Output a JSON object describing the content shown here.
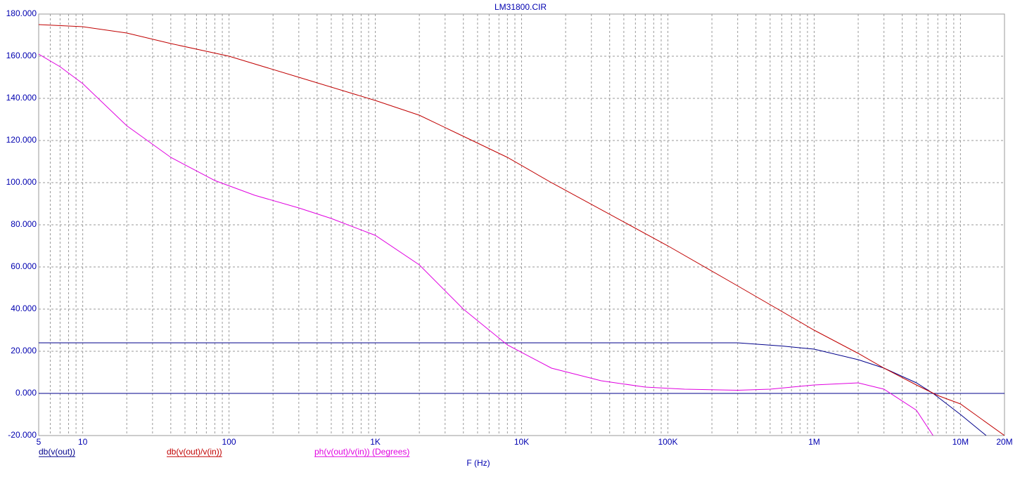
{
  "chart_data": {
    "type": "line",
    "title": "LM31800.CIR",
    "x_label": "F (Hz)",
    "log_x": true,
    "grid": true,
    "xlim": [
      5,
      20000000
    ],
    "xticks": [
      5,
      10,
      100,
      {
        "value": 1000,
        "label": "1K"
      },
      {
        "value": 10000,
        "label": "10K"
      },
      {
        "value": 100000,
        "label": "100K"
      },
      {
        "value": 1000000,
        "label": "1M"
      },
      {
        "value": 10000000,
        "label": "10M"
      },
      {
        "value": 20000000,
        "label": "20M"
      }
    ],
    "ylim": [
      -20,
      180
    ],
    "yticks": [
      {
        "value": -20,
        "label": "-20.000"
      },
      {
        "value": 0,
        "label": "0.000"
      },
      {
        "value": 20,
        "label": "20.000"
      },
      {
        "value": 40,
        "label": "40.000"
      },
      {
        "value": 60,
        "label": "60.000"
      },
      {
        "value": 80,
        "label": "80.000"
      },
      {
        "value": 100,
        "label": "100.000"
      },
      {
        "value": 120,
        "label": "120.000"
      },
      {
        "value": 140,
        "label": "140.000"
      },
      {
        "value": 160,
        "label": "160.000"
      },
      {
        "value": 180,
        "label": "180.000"
      }
    ],
    "series": [
      {
        "name": "db(v(out))",
        "color": "#00008b",
        "x": [
          5,
          100,
          10000,
          300000,
          600000,
          1000000,
          2000000,
          3000000,
          5000000,
          6500000,
          10000000,
          15000000
        ],
        "values": [
          24,
          24,
          24,
          24,
          22.5,
          21,
          16,
          12,
          5,
          0,
          -10,
          -20
        ]
      },
      {
        "name": "db(v(out)/v(in))",
        "color": "#c00000",
        "x": [
          5,
          10,
          20,
          40,
          100,
          300,
          1000,
          2000,
          4000,
          8000,
          16000,
          100000,
          300000,
          1000000,
          2000000,
          3000000,
          5000000,
          7000000,
          10000000,
          20000000
        ],
        "values": [
          175,
          174,
          171,
          166,
          160,
          150,
          139,
          132,
          122,
          112,
          100,
          70,
          51,
          30,
          19,
          12,
          4,
          -1,
          -5,
          -20
        ]
      },
      {
        "name": "ph(v(out)/v(in)) (Degrees)",
        "color": "#e000e0",
        "x": [
          5,
          7,
          10,
          20,
          40,
          80,
          150,
          300,
          500,
          1000,
          2000,
          4000,
          8000,
          16000,
          35000,
          70000,
          130000,
          300000,
          500000,
          1000000,
          2000000,
          3000000,
          5000000,
          6500000
        ],
        "values": [
          161,
          155,
          147,
          127,
          112,
          101,
          94,
          88,
          83,
          75,
          61,
          40,
          23,
          12,
          6,
          3,
          2,
          1.5,
          2,
          4,
          5,
          2,
          -8,
          -20
        ]
      }
    ]
  }
}
